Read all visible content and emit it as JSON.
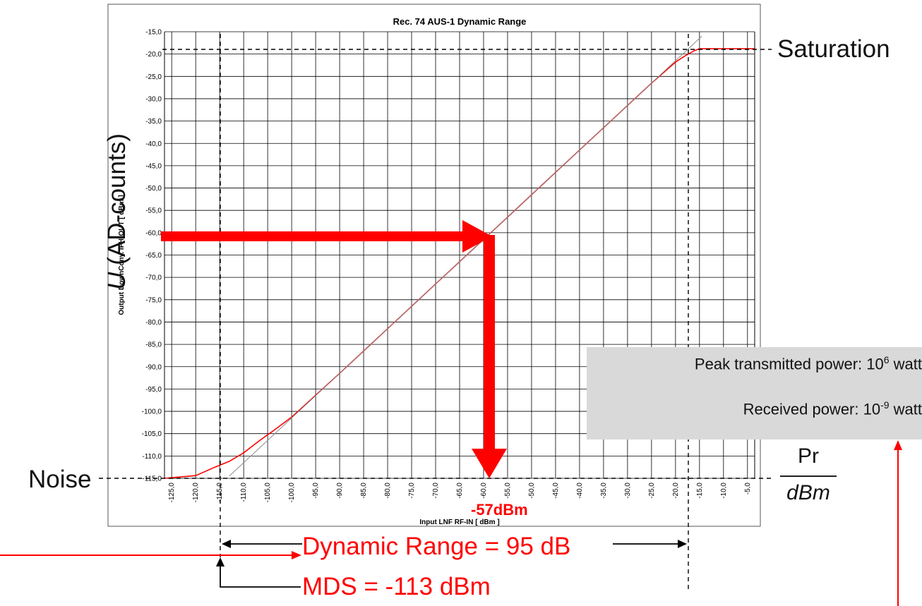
{
  "chart_data": {
    "type": "line",
    "title": "Rec. 74 AUS-1     Dynamic Range",
    "xlabel": "Input LNF RF-IN [ dBm ]",
    "ylabel": "Output DownConv. IFH-OUT [ dBm ]",
    "xlim": [
      -126.5,
      -3.5
    ],
    "ylim": [
      -115.0,
      -15.0
    ],
    "x_ticks": [
      "-125,0",
      "-120,0",
      "-115,0",
      "-110,0",
      "-105,0",
      "-100,0",
      "-95,0",
      "-90,0",
      "-85,0",
      "-80,0",
      "-75,0",
      "-70,0",
      "-65,0",
      "-60,0",
      "-55,0",
      "-50,0",
      "-45,0",
      "-40,0",
      "-35,0",
      "-30,0",
      "-25,0",
      "-20,0",
      "-15,0",
      "-10,0",
      "-5,0"
    ],
    "y_ticks": [
      "-15,0",
      "-20,0",
      "-25,0",
      "-30,0",
      "-35,0",
      "-40,0",
      "-45,0",
      "-50,0",
      "-55,0",
      "-60,0",
      "-65,0",
      "-70,0",
      "-75,0",
      "-80,0",
      "-85,0",
      "-90,0",
      "-95,0",
      "-100,0",
      "-105,0",
      "-110,0",
      "-115,0"
    ],
    "grid": true,
    "series": [
      {
        "color": "#ff0000",
        "x": [
          -126.5,
          -120,
          -116,
          -113,
          -110,
          -107,
          -104,
          -100,
          -90,
          -80,
          -70,
          -60,
          -57,
          -50,
          -40,
          -30,
          -25,
          -20,
          -18,
          -16,
          -15,
          -12,
          -3.5
        ],
        "y": [
          -115,
          -114.4,
          -112.5,
          -111.2,
          -109.3,
          -106.8,
          -104.5,
          -101.3,
          -91.5,
          -81.5,
          -71.5,
          -61.5,
          -58.5,
          -51.5,
          -41.5,
          -31.5,
          -26.5,
          -21.8,
          -20.4,
          -19.2,
          -18.8,
          -18.8,
          -18.8
        ]
      },
      {
        "color": "#8c8c8c",
        "x": [
          -113,
          -14.5
        ],
        "y": [
          -114.5,
          -16
        ]
      }
    ]
  },
  "annotations": {
    "saturation": "Saturation",
    "noise": "Noise",
    "u_italic": "U",
    "u_rest": " (AD-counts)",
    "pr": "Pr",
    "dbm": "dBm",
    "marker": "-57dBm",
    "dynamic_range": "Dynamic Range = 95 dB",
    "mds": "MDS = -113 dBm",
    "peak_prefix": "Peak transmitted power: 10",
    "peak_exp": "6",
    "peak_suffix": " watt",
    "recv_prefix": "Received power: 10",
    "recv_exp": "-9",
    "recv_suffix": " watt"
  },
  "colors": {
    "accent": "#ff0000",
    "grid": "#000000",
    "ideal": "#8c8c8c"
  }
}
